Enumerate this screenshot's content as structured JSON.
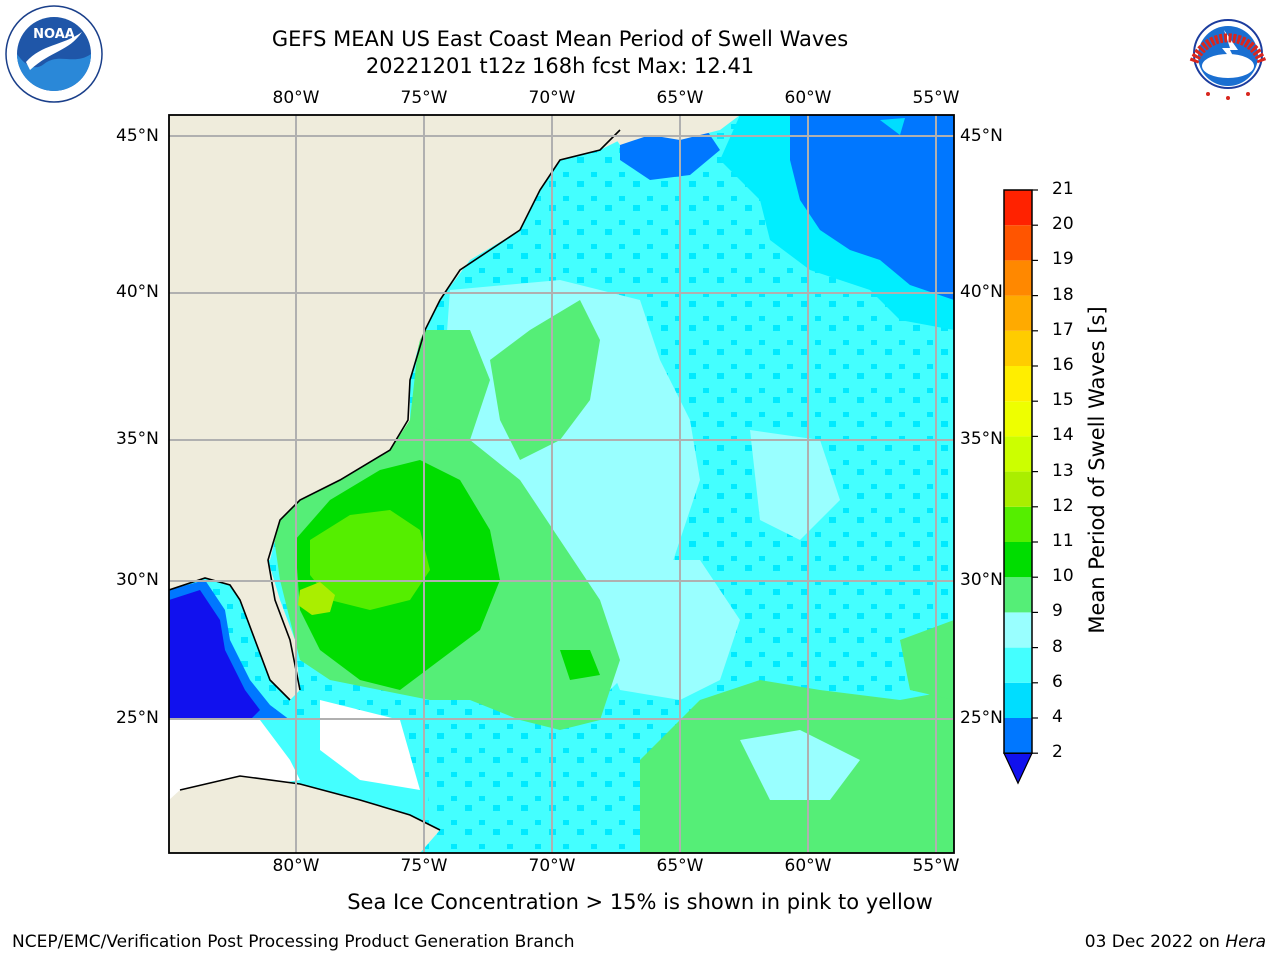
{
  "title": {
    "line1": "GEFS MEAN US East Coast Mean Period of Swell Waves",
    "line2": "20221201 t12z 168h fcst   Max: 12.41"
  },
  "map": {
    "lon_labels": [
      "80°W",
      "75°W",
      "70°W",
      "65°W",
      "60°W",
      "55°W"
    ],
    "lat_labels": [
      "45°N",
      "40°N",
      "35°N",
      "30°N",
      "25°N"
    ],
    "extent": {
      "lon_min": -85,
      "lon_max": -54.3,
      "lat_min": 20.5,
      "lat_max": 45.8
    },
    "grid": true,
    "land_color": "#efecdc",
    "grid_color": "#b0b0b0"
  },
  "colorbar": {
    "title": "Mean Period of Swell Waves [s]",
    "ticks": [
      "2",
      "4",
      "6",
      "8",
      "9",
      "10",
      "11",
      "12",
      "13",
      "14",
      "15",
      "16",
      "17",
      "18",
      "19",
      "20",
      "21"
    ],
    "colors": [
      "#0077ff",
      "#00ddff",
      "#44ffff",
      "#99ffff",
      "#55ee77",
      "#00dd00",
      "#55ee00",
      "#aaee00",
      "#ccff00",
      "#eeff00",
      "#ffee00",
      "#ffcc00",
      "#ffaa00",
      "#ff8800",
      "#ff5500",
      "#ff2200"
    ],
    "under_color": "#1111ee"
  },
  "footer": {
    "seaice": "Sea Ice Concentration > 15% is shown in pink to yellow",
    "left": "NCEP/EMC/Verification Post Processing Product Generation Branch",
    "date": "03 Dec 2022 on ",
    "host": "Hera"
  },
  "logos": {
    "noaa": "NOAA",
    "nws": "NATIONAL WEATHER SERVICE"
  }
}
